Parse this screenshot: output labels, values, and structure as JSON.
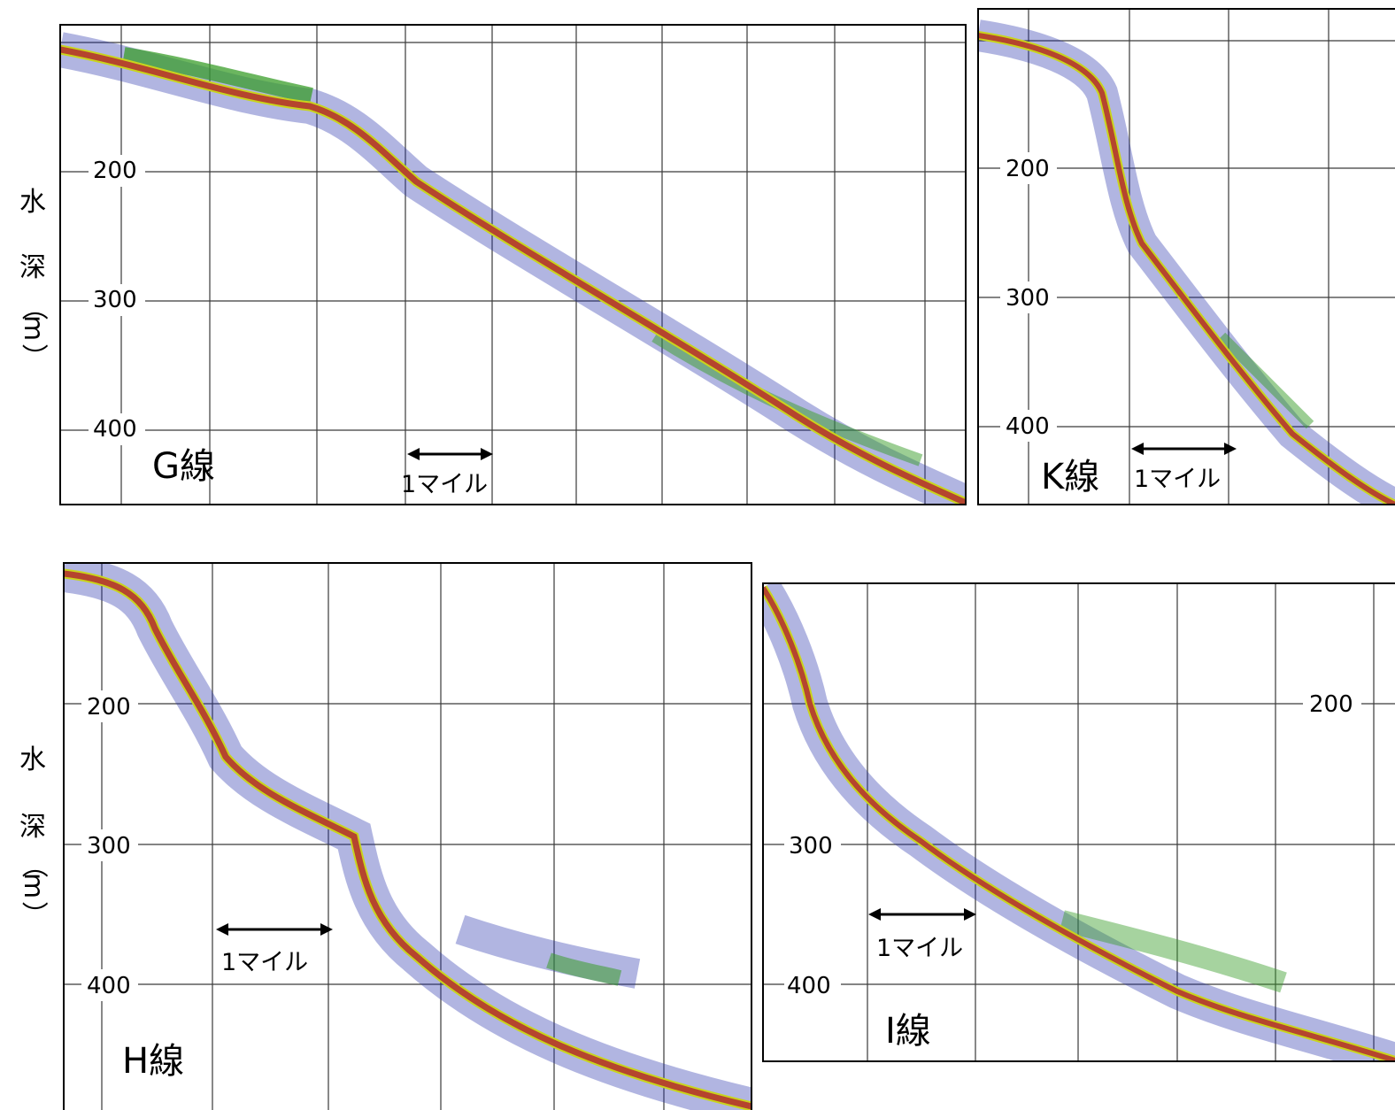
{
  "axis_title": {
    "chars": [
      "水",
      "深",
      "（",
      "m",
      "）"
    ]
  },
  "scale_bar": {
    "label": "1マイル"
  },
  "palette": {
    "frame": "#000000",
    "grid": "#3a3a3a",
    "bottom_echo": "#b5452e",
    "echo_core": "#7a2a1c",
    "dense_echo": "#3a9d2a",
    "echo_mid": "#c9d41c",
    "scatter": "#1f2aa8",
    "noise": "#9a9a9a"
  },
  "panels": [
    {
      "id": "G",
      "name": "G線",
      "ticks": [
        {
          "label": "200",
          "depth": 200
        },
        {
          "label": "300",
          "depth": 300
        },
        {
          "label": "400",
          "depth": 400
        }
      ]
    },
    {
      "id": "K",
      "name": "K線",
      "ticks": [
        {
          "label": "200",
          "depth": 200
        },
        {
          "label": "300",
          "depth": 300
        },
        {
          "label": "400",
          "depth": 400
        }
      ]
    },
    {
      "id": "H",
      "name": "H線",
      "ticks": [
        {
          "label": "200",
          "depth": 200
        },
        {
          "label": "300",
          "depth": 300
        },
        {
          "label": "400",
          "depth": 400
        }
      ]
    },
    {
      "id": "I",
      "name": "I線",
      "ticks": [
        {
          "label": "200",
          "depth": 200
        },
        {
          "label": "300",
          "depth": 300
        },
        {
          "label": "400",
          "depth": 400
        }
      ]
    }
  ]
}
